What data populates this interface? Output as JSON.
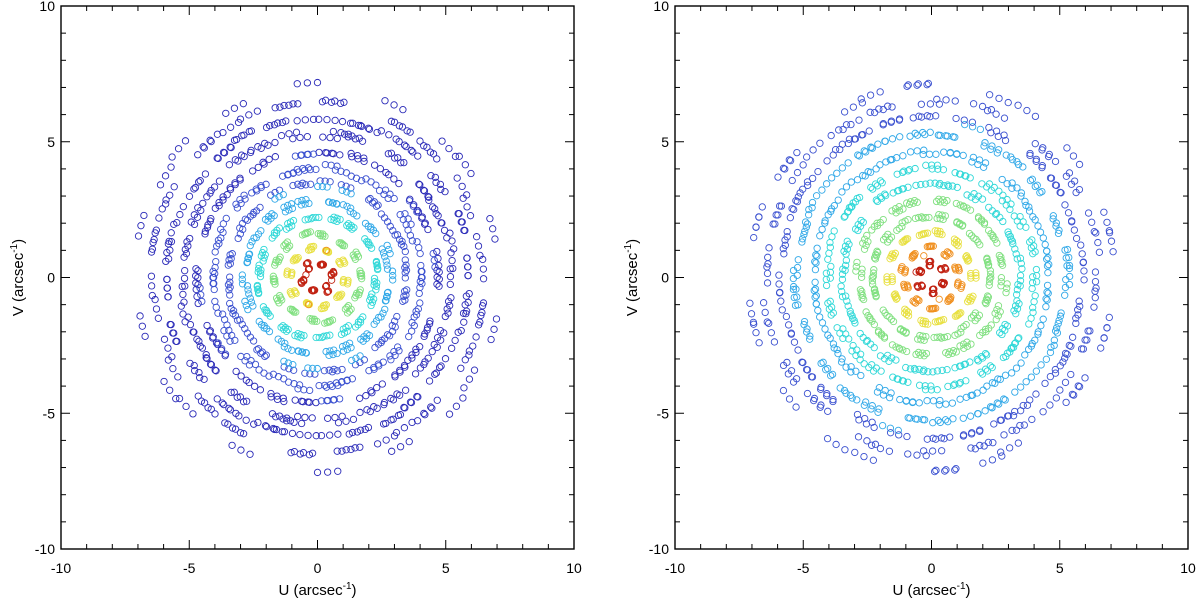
{
  "chart_data": [
    {
      "type": "scatter",
      "title": "",
      "xlabel": "U (arcsec",
      "xlabel_sup": "-1",
      "xlabel_tail": ")",
      "ylabel": "V (arcsec",
      "ylabel_sup": "-1",
      "ylabel_tail": ")",
      "xlim": [
        -10,
        10
      ],
      "ylim": [
        -10,
        10
      ],
      "xticks": [
        -10,
        -5,
        0,
        5,
        10
      ],
      "yticks": [
        -10,
        -5,
        0,
        5,
        10
      ],
      "xtick_labels": [
        "-10",
        "-5",
        "0",
        "5",
        "10"
      ],
      "ytick_labels": [
        "-10",
        "-5",
        "0",
        "5",
        "10"
      ],
      "grid": false,
      "marker": "open-circle",
      "colormap": [
        "#2a2ab8",
        "#3a50d0",
        "#30a8e8",
        "#30d8d8",
        "#80e080",
        "#e8e040",
        "#f09020",
        "#c02010"
      ],
      "color_scale": "visibility amplitude, decreasing with uv radius (compact central emission)",
      "sampling": {
        "rings": [
          0.55,
          1.1,
          1.65,
          2.25,
          2.85,
          3.45,
          4.05,
          4.65,
          5.3,
          5.9,
          6.5,
          7.1
        ],
        "spokes_per_ring": [
          6,
          10,
          14,
          18,
          20,
          22,
          24,
          24,
          26,
          26,
          20,
          14
        ],
        "points_per_track": 3,
        "max_radius": 7.2,
        "rotation_deg": 12
      },
      "highlight_points": [
        {
          "u": 0.55,
          "v": -0.1,
          "level": 7
        },
        {
          "u": -0.45,
          "v": 0.1,
          "level": 7
        },
        {
          "u": 0.35,
          "v": 1.0,
          "level": 6
        },
        {
          "u": -0.35,
          "v": -1.0,
          "level": 6
        }
      ]
    },
    {
      "type": "scatter",
      "title": "",
      "xlabel": "U (arcsec",
      "xlabel_sup": "-1",
      "xlabel_tail": ")",
      "ylabel": "V (arcsec",
      "ylabel_sup": "-1",
      "ylabel_tail": ")",
      "xlim": [
        -10,
        10
      ],
      "ylim": [
        -10,
        10
      ],
      "xticks": [
        -10,
        -5,
        0,
        5,
        10
      ],
      "yticks": [
        -10,
        -5,
        0,
        5,
        10
      ],
      "xtick_labels": [
        "-10",
        "-5",
        "0",
        "5",
        "10"
      ],
      "ytick_labels": [
        "-10",
        "-5",
        "0",
        "5",
        "10"
      ],
      "grid": false,
      "marker": "open-circle",
      "colormap": [
        "#2a2ab8",
        "#3a50d0",
        "#30a8e8",
        "#30d8d8",
        "#80e080",
        "#e8e040",
        "#f09020",
        "#c02010"
      ],
      "color_scale": "visibility amplitude, decreasing with uv radius (more extended emission)",
      "sampling": {
        "rings": [
          0.55,
          1.1,
          1.65,
          2.25,
          2.85,
          3.45,
          4.05,
          4.65,
          5.3,
          5.9,
          6.5,
          7.1
        ],
        "spokes_per_ring": [
          6,
          10,
          14,
          18,
          20,
          22,
          24,
          24,
          26,
          26,
          20,
          14
        ],
        "points_per_track": 3,
        "max_radius": 7.2,
        "rotation_deg": 36
      },
      "highlight_points": [
        {
          "u": 0.5,
          "v": -0.2,
          "level": 7
        },
        {
          "u": -0.6,
          "v": 0.2,
          "level": 7
        },
        {
          "u": -0.3,
          "v": 0.8,
          "level": 6
        },
        {
          "u": 0.3,
          "v": -0.8,
          "level": 6
        }
      ]
    }
  ]
}
